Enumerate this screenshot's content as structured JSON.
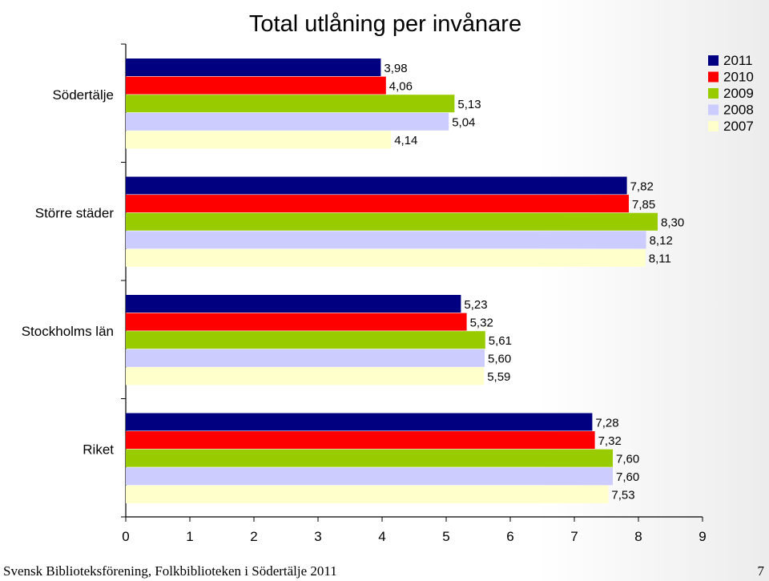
{
  "chart_data": {
    "type": "bar",
    "orientation": "horizontal",
    "title": "Total utlåning per invånare",
    "categories": [
      "Södertälje",
      "Större städer",
      "Stockholms län",
      "Riket"
    ],
    "series": [
      {
        "name": "2011",
        "color": "#000080",
        "values": [
          3.98,
          7.82,
          5.23,
          7.28
        ],
        "labels": [
          "3,98",
          "7,82",
          "5,23",
          "7,28"
        ]
      },
      {
        "name": "2010",
        "color": "#ff0000",
        "values": [
          4.06,
          7.85,
          5.32,
          7.32
        ],
        "labels": [
          "4,06",
          "7,85",
          "5,32",
          "7,32"
        ]
      },
      {
        "name": "2009",
        "color": "#99cc00",
        "values": [
          5.13,
          8.3,
          5.61,
          7.6
        ],
        "labels": [
          "5,13",
          "8,30",
          "5,61",
          "7,60"
        ]
      },
      {
        "name": "2008",
        "color": "#ccccff",
        "values": [
          5.04,
          8.12,
          5.6,
          7.6
        ],
        "labels": [
          "5,04",
          "8,12",
          "5,60",
          "7,60"
        ]
      },
      {
        "name": "2007",
        "color": "#ffffcc",
        "values": [
          4.14,
          8.11,
          5.59,
          7.53
        ],
        "labels": [
          "4,14",
          "8,11",
          "5,59",
          "7,53"
        ]
      }
    ],
    "xlim": [
      0,
      9
    ],
    "xticks": [
      "0",
      "1",
      "2",
      "3",
      "4",
      "5",
      "6",
      "7",
      "8",
      "9"
    ],
    "legend_position": "top-right",
    "grid": false
  },
  "footer": {
    "left": "Svensk Biblioteksförening, Folkbiblioteken i Södertälje 2011",
    "page": "7"
  }
}
